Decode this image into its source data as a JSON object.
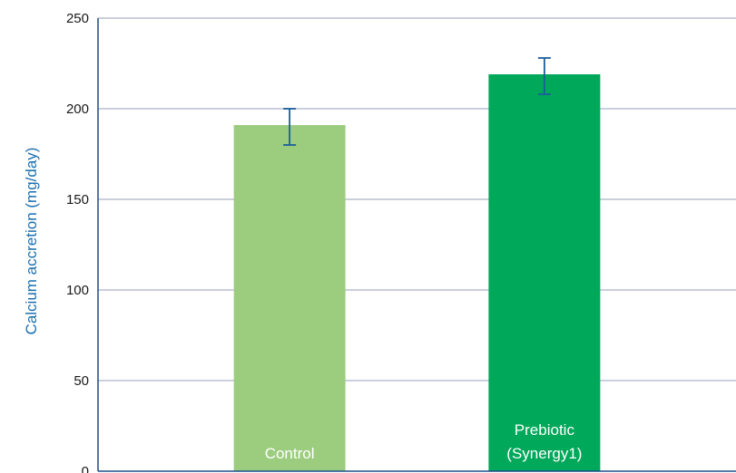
{
  "chart_data": {
    "type": "bar",
    "title": "",
    "xlabel": "",
    "ylabel": "Calcium accretion (mg/day)",
    "ylim": [
      0,
      250
    ],
    "yticks": [
      0,
      50,
      100,
      150,
      200,
      250
    ],
    "grid": true,
    "categories": [
      "Control",
      "Prebiotic (Synergy1)"
    ],
    "category_label_lines": [
      [
        "Control"
      ],
      [
        "Prebiotic",
        "(Synergy1)"
      ]
    ],
    "values": [
      191,
      219
    ],
    "error_low": [
      180,
      208
    ],
    "error_high": [
      200,
      228
    ],
    "colors": {
      "bars": [
        "#9ccd7f",
        "#00a85a"
      ],
      "error_bars": "#1b5f9a",
      "grid": "#b9bfd0",
      "axis": "#1b4f8a",
      "ylabel": "#1b6fae"
    }
  }
}
